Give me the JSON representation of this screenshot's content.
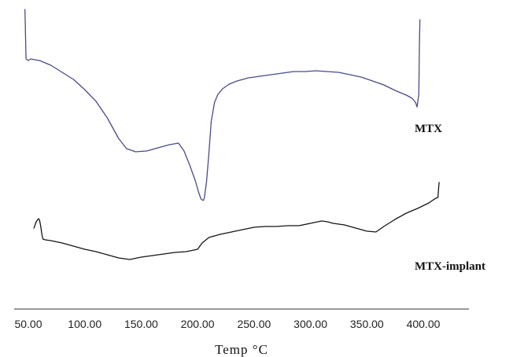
{
  "chart_data": {
    "type": "line",
    "xlabel": "Temp °C",
    "xlim": [
      47,
      420
    ],
    "x_ticks": [
      "50.00",
      "100.00",
      "150.00",
      "200.00",
      "250.00",
      "300.00",
      "350.00",
      "400.00"
    ],
    "grid": false,
    "series": [
      {
        "name": "MTX",
        "color": "#4a4a8a",
        "x": [
          47,
          48,
          50,
          52,
          60,
          70,
          80,
          90,
          100,
          110,
          120,
          130,
          137,
          145,
          155,
          165,
          175,
          183,
          188,
          193,
          198,
          201,
          203,
          205,
          206,
          208,
          210,
          212,
          215,
          218,
          222,
          228,
          235,
          245,
          255,
          265,
          275,
          285,
          295,
          305,
          315,
          325,
          335,
          345,
          355,
          365,
          375,
          380,
          385,
          390,
          393,
          394.5,
          396,
          396.5,
          397
        ],
        "values": [
          12,
          75,
          77,
          75,
          77,
          83,
          92,
          101,
          114,
          129,
          150,
          176,
          189,
          193,
          192,
          188,
          184,
          182,
          192,
          210,
          230,
          245,
          253,
          255,
          252,
          230,
          195,
          155,
          130,
          120,
          113,
          107,
          103,
          99,
          97,
          95,
          93,
          91,
          91,
          90,
          91,
          92,
          95,
          98,
          103,
          108,
          115,
          118,
          121,
          125,
          130,
          136,
          120,
          60,
          25
        ]
      },
      {
        "name": "MTX-implant",
        "color": "#151515",
        "x": [
          55,
          57,
          59,
          60,
          61,
          62,
          63,
          65,
          70,
          80,
          90,
          100,
          110,
          120,
          130,
          140,
          150,
          160,
          170,
          180,
          190,
          200,
          204,
          210,
          220,
          230,
          240,
          250,
          260,
          270,
          280,
          290,
          300,
          310,
          315,
          320,
          330,
          340,
          350,
          358,
          365,
          375,
          385,
          395,
          405,
          410,
          413,
          413.5,
          414
        ],
        "values": [
          290,
          282,
          278,
          280,
          288,
          298,
          304,
          305,
          306,
          309,
          313,
          317,
          320,
          324,
          328,
          330,
          327,
          325,
          323,
          321,
          320,
          317,
          309,
          302,
          298,
          295,
          292,
          289,
          288,
          288,
          287,
          287,
          284,
          281,
          282,
          284,
          286,
          290,
          294,
          295,
          288,
          279,
          271,
          265,
          258,
          253,
          251,
          240,
          232
        ]
      }
    ]
  }
}
